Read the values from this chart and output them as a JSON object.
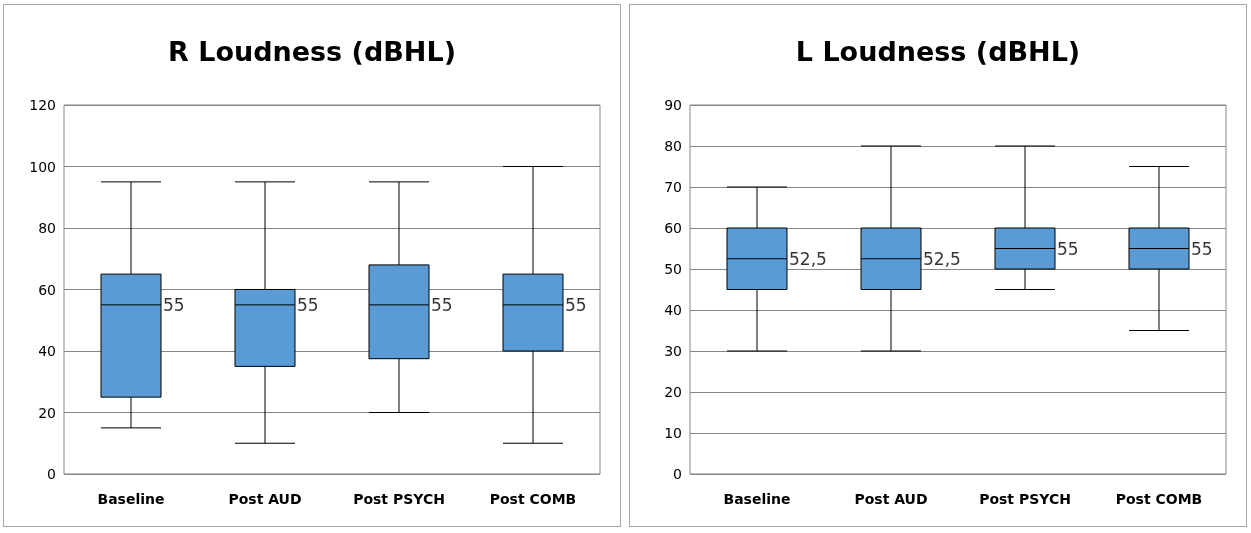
{
  "chart_data": [
    {
      "type": "box",
      "title": "R Loudness (dBHL)",
      "categories": [
        "Baseline",
        "Post AUD",
        "Post PSYCH",
        "Post COMB"
      ],
      "color": "#5b9bd5",
      "ylim": [
        0,
        120
      ],
      "yticks": [
        0,
        20,
        40,
        60,
        80,
        100,
        120
      ],
      "grid": "y",
      "boxes": [
        {
          "low": 15,
          "q1": 25,
          "median": 55,
          "q3": 65,
          "high": 95
        },
        {
          "low": 10,
          "q1": 35,
          "median": 55,
          "q3": 60,
          "high": 95
        },
        {
          "low": 20,
          "q1": 37.5,
          "median": 55,
          "q3": 68,
          "high": 95
        },
        {
          "low": 10,
          "q1": 40,
          "median": 55,
          "q3": 65,
          "high": 100
        }
      ],
      "value_labels": [
        "55",
        "55",
        "55",
        "55"
      ]
    },
    {
      "type": "box",
      "title": "L Loudness (dBHL)",
      "categories": [
        "Baseline",
        "Post AUD",
        "Post PSYCH",
        "Post COMB"
      ],
      "color": "#5b9bd5",
      "ylim": [
        0,
        90
      ],
      "yticks": [
        0,
        10,
        20,
        30,
        40,
        50,
        60,
        70,
        80,
        90
      ],
      "grid": "y",
      "boxes": [
        {
          "low": 30,
          "q1": 45,
          "median": 52.5,
          "q3": 60,
          "high": 70
        },
        {
          "low": 30,
          "q1": 45,
          "median": 52.5,
          "q3": 60,
          "high": 80
        },
        {
          "low": 45,
          "q1": 50,
          "median": 55,
          "q3": 60,
          "high": 80
        },
        {
          "low": 35,
          "q1": 50,
          "median": 55,
          "q3": 60,
          "high": 75
        }
      ],
      "value_labels": [
        "52,5",
        "52,5",
        "55",
        "55"
      ]
    }
  ]
}
